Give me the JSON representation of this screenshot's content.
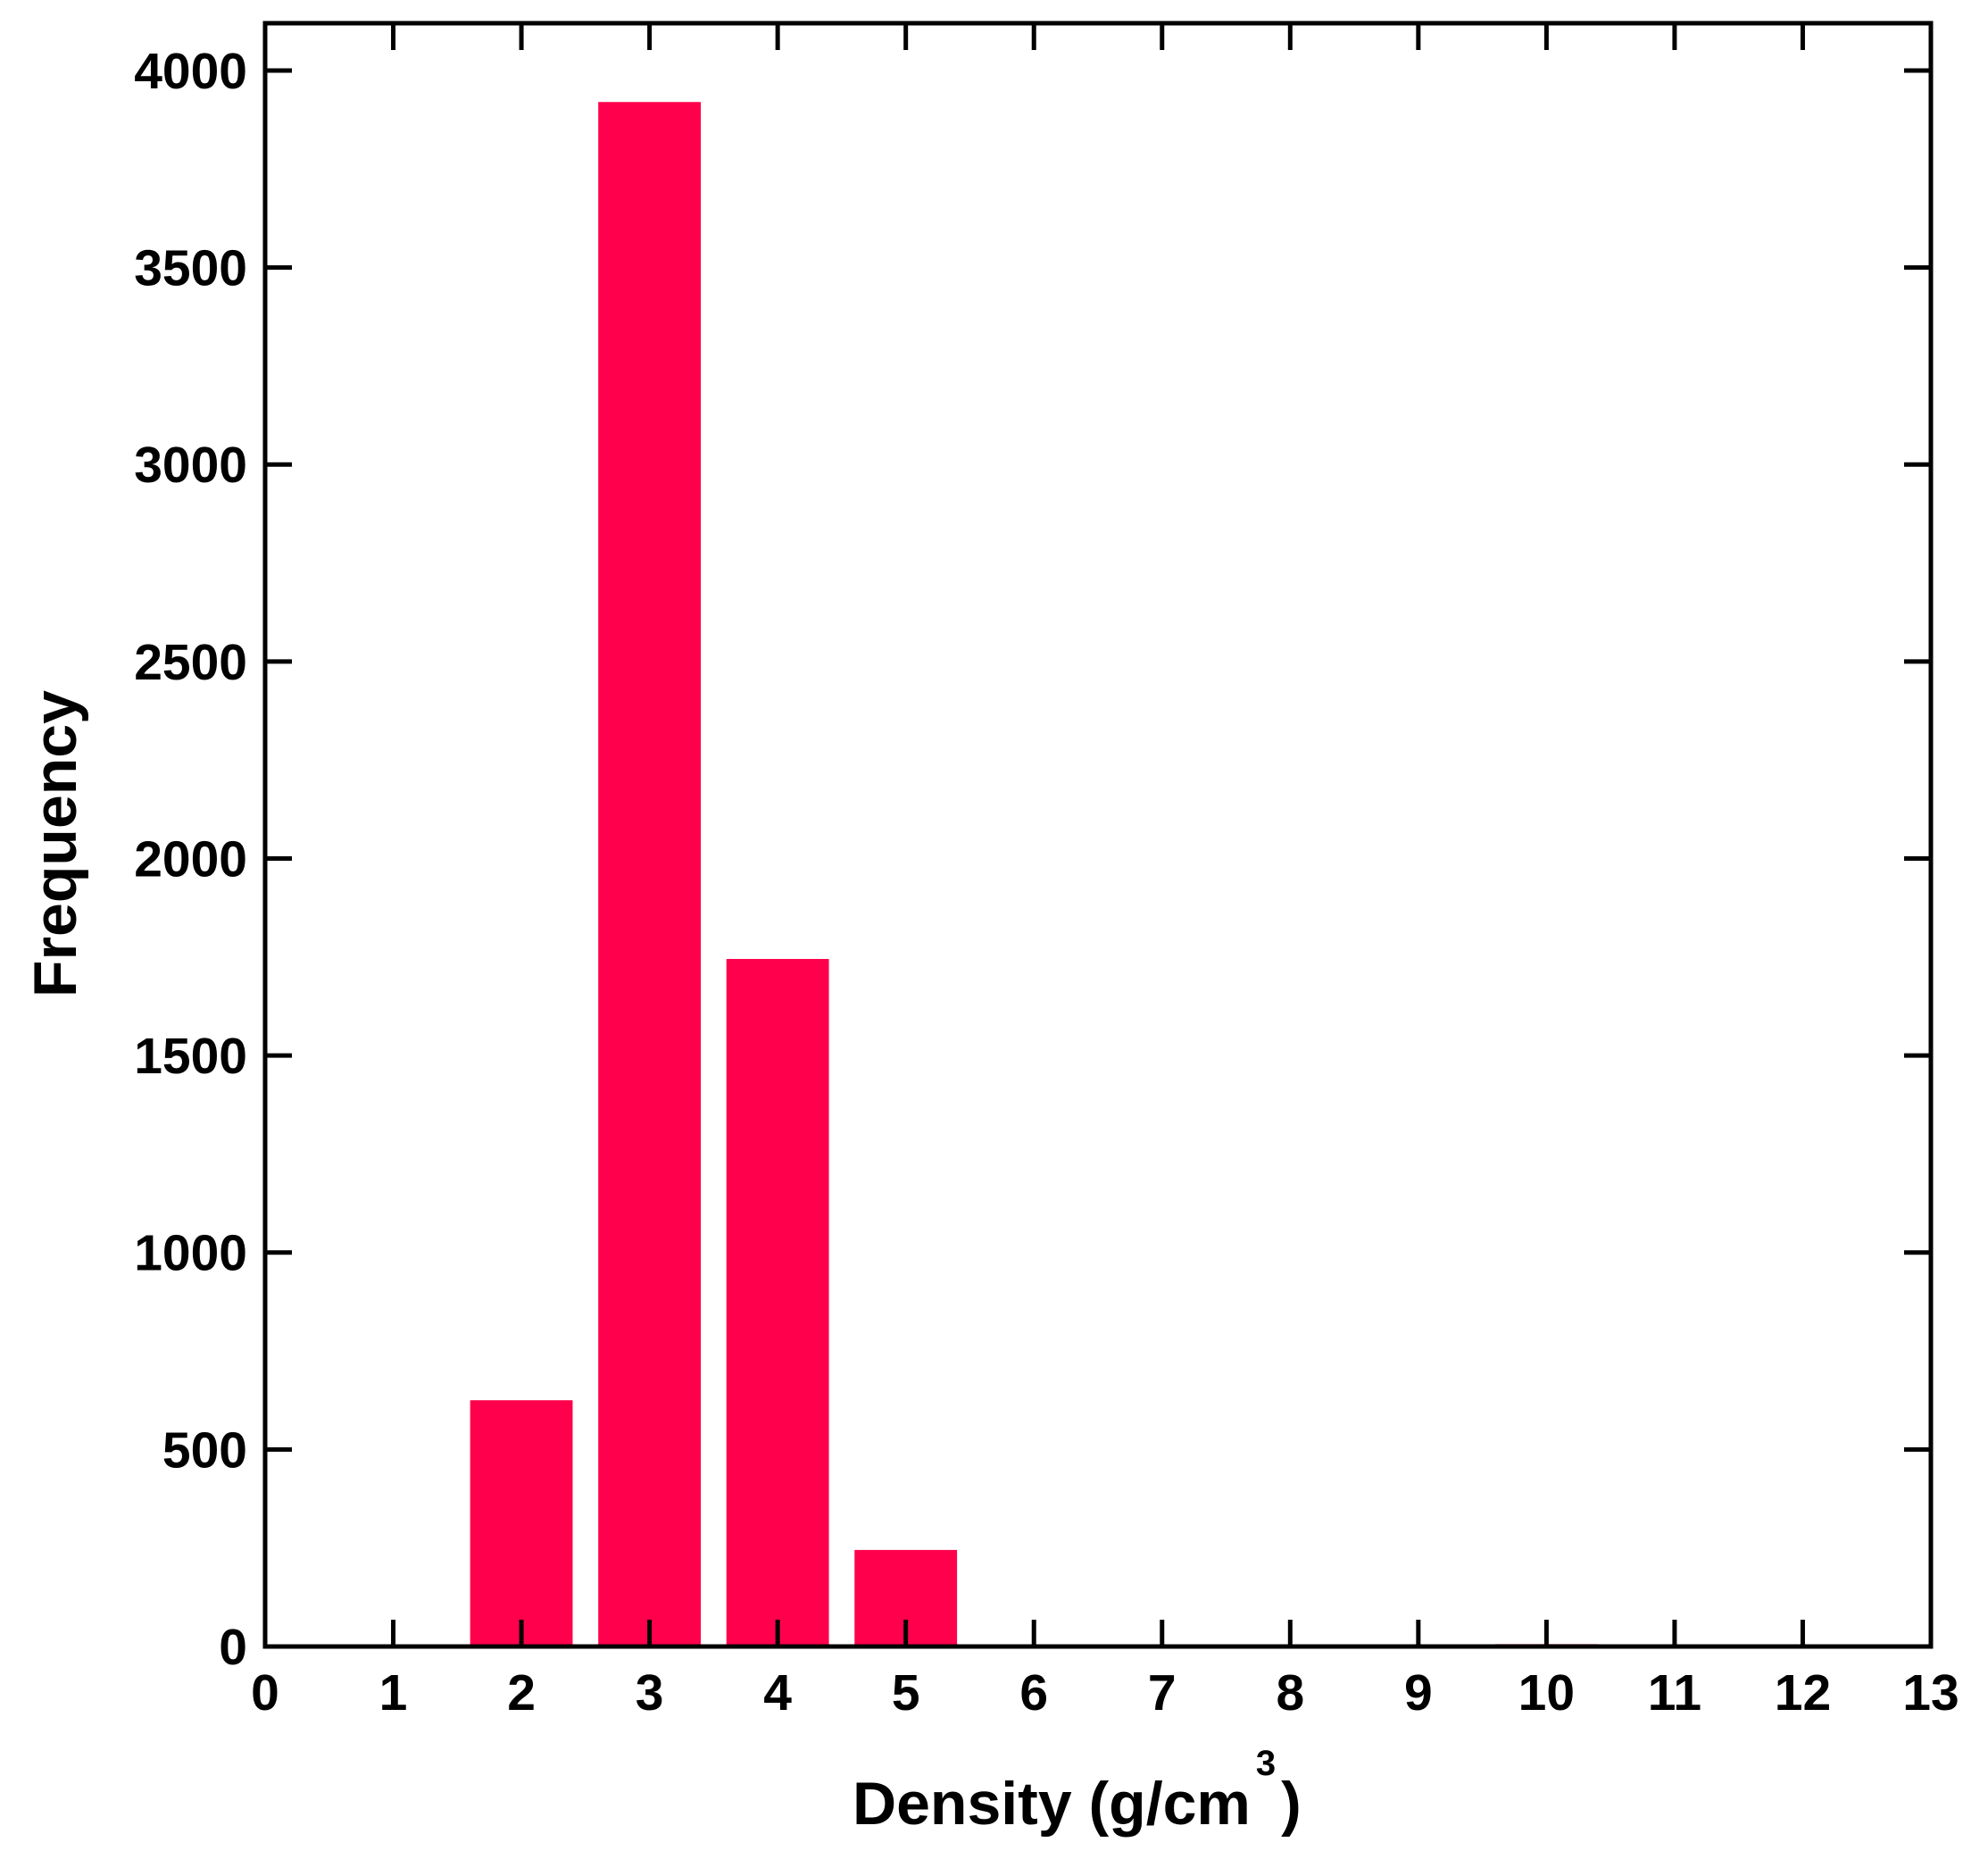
{
  "chart_data": {
    "type": "bar",
    "title": "",
    "xlabel": "Density (g/cm",
    "xlabel_superscript": "3",
    "xlabel_suffix": ")",
    "ylabel": "Frequency",
    "x": [
      1,
      2,
      3,
      4,
      5,
      6,
      7,
      8,
      9,
      10,
      11,
      12
    ],
    "values": [
      0,
      625,
      3920,
      1745,
      245,
      4,
      0,
      0,
      5,
      6,
      0,
      3
    ],
    "bar_width": 0.8,
    "xlim": [
      0,
      13
    ],
    "ylim": [
      0,
      4120
    ],
    "xticks": [
      "0",
      "1",
      "2",
      "3",
      "4",
      "5",
      "6",
      "7",
      "8",
      "9",
      "10",
      "11",
      "12",
      "13"
    ],
    "yticks": [
      "0",
      "500",
      "1000",
      "1500",
      "2000",
      "2500",
      "3000",
      "3500",
      "4000"
    ],
    "grid": false,
    "legend": "none",
    "bar_color": "#ff004c"
  }
}
